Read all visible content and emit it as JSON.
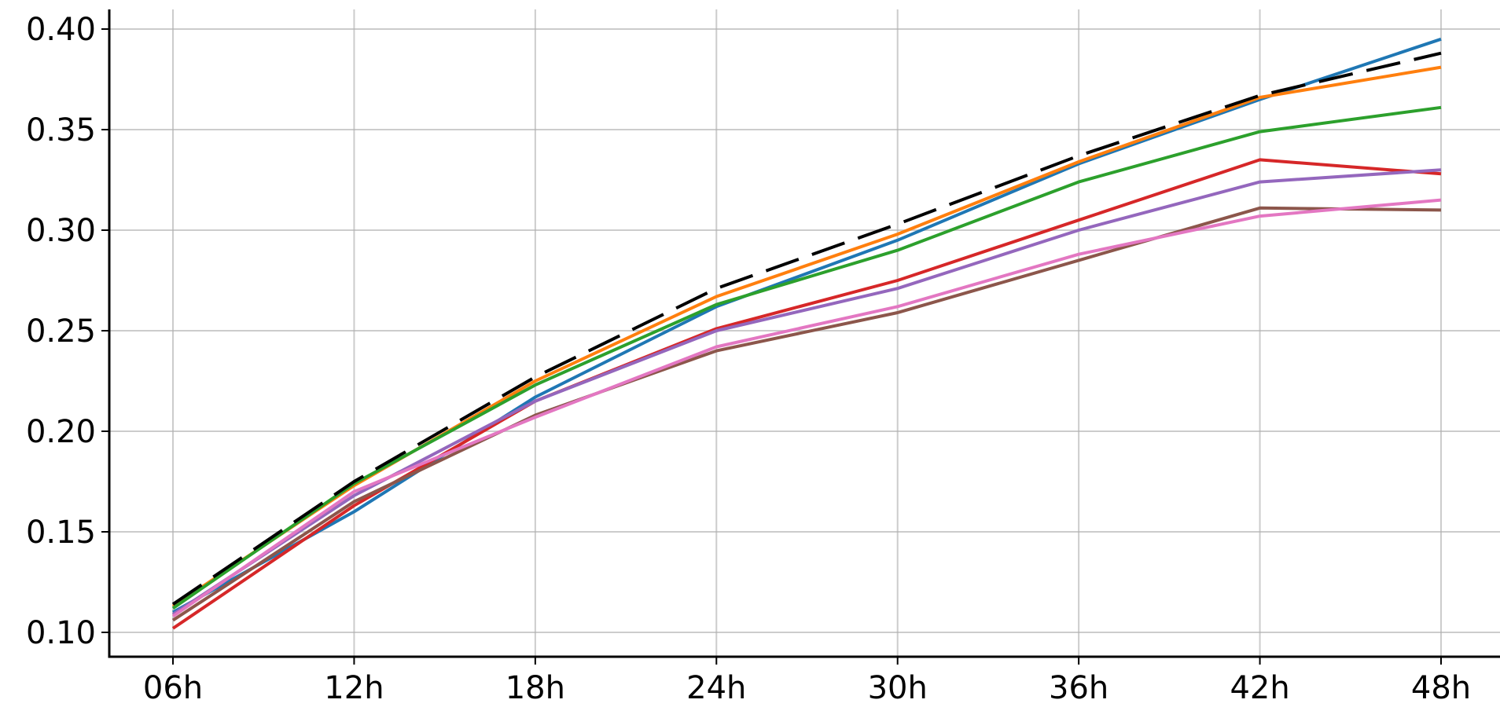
{
  "chart_data": {
    "type": "line",
    "title": "",
    "xlabel": "",
    "ylabel": "",
    "categories": [
      "06h",
      "12h",
      "18h",
      "24h",
      "30h",
      "36h",
      "42h",
      "48h"
    ],
    "yticks": [
      "0.10",
      "0.15",
      "0.20",
      "0.25",
      "0.30",
      "0.35",
      "0.40"
    ],
    "ytick_values": [
      0.1,
      0.15,
      0.2,
      0.25,
      0.3,
      0.35,
      0.4
    ],
    "ylim": [
      0.0875,
      0.41
    ],
    "grid": true,
    "series": [
      {
        "color": "#1f77b4",
        "dashed": false,
        "values": [
          0.11,
          0.16,
          0.217,
          0.262,
          0.295,
          0.333,
          0.365,
          0.395
        ]
      },
      {
        "color": "#ff7f0e",
        "dashed": false,
        "values": [
          0.113,
          0.173,
          0.225,
          0.267,
          0.298,
          0.334,
          0.366,
          0.381
        ]
      },
      {
        "color": "#2ca02c",
        "dashed": false,
        "values": [
          0.112,
          0.174,
          0.223,
          0.263,
          0.29,
          0.324,
          0.349,
          0.361
        ]
      },
      {
        "color": "#d62728",
        "dashed": false,
        "values": [
          0.102,
          0.163,
          0.215,
          0.251,
          0.275,
          0.305,
          0.335,
          0.328
        ]
      },
      {
        "color": "#9467bd",
        "dashed": false,
        "values": [
          0.109,
          0.168,
          0.215,
          0.25,
          0.271,
          0.3,
          0.324,
          0.33
        ]
      },
      {
        "color": "#8c564b",
        "dashed": false,
        "values": [
          0.106,
          0.165,
          0.208,
          0.24,
          0.259,
          0.285,
          0.311,
          0.31
        ]
      },
      {
        "color": "#e377c2",
        "dashed": false,
        "values": [
          0.108,
          0.17,
          0.207,
          0.242,
          0.262,
          0.288,
          0.307,
          0.315
        ]
      },
      {
        "color": "#000000",
        "dashed": true,
        "values": [
          0.114,
          0.175,
          0.227,
          0.271,
          0.303,
          0.337,
          0.367,
          0.388
        ]
      }
    ]
  }
}
